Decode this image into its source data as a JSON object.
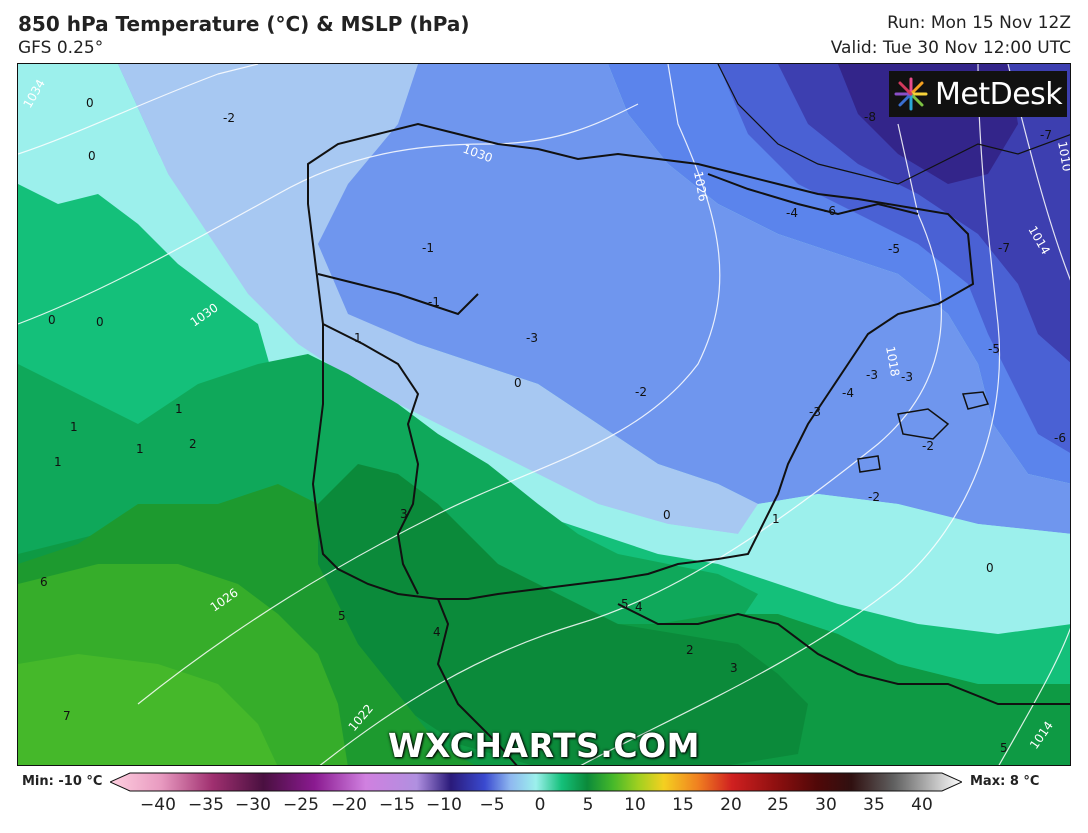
{
  "header": {
    "title": "850 hPa Temperature (°C) & MSLP (hPa)",
    "model": "GFS 0.25°",
    "run": "Run: Mon 15 Nov 12Z",
    "valid": "Valid: Tue 30 Nov 12:00 UTC"
  },
  "branding": {
    "logo_text": "MetDesk",
    "watermark": "WXCHARTS.COM"
  },
  "legend": {
    "min_label": "Min: -10 °C",
    "max_label": "Max: 8 °C",
    "ticks": [
      "−40",
      "−35",
      "−30",
      "−25",
      "−20",
      "−15",
      "−10",
      "−5",
      "0",
      "5",
      "10",
      "15",
      "20",
      "25",
      "30",
      "35",
      "40"
    ]
  },
  "map_labels": {
    "isobars": [
      "1034",
      "1030",
      "1030",
      "1026",
      "1026",
      "1022",
      "1018",
      "1014",
      "1014",
      "1010"
    ],
    "temperature": [
      "0",
      "0",
      "-2",
      "0",
      "0",
      "0",
      "1",
      "1",
      "1",
      "1",
      "2",
      "1",
      "1",
      "1",
      "-1",
      "-1",
      "-3",
      "0",
      "-2",
      "-3",
      "-4",
      "-3",
      "-3",
      "-5",
      "-5",
      "-6",
      "-7",
      "-7",
      "-8",
      "-5",
      "-4",
      "-6",
      "-2",
      "-2",
      "1",
      "0",
      "0",
      "3",
      "6",
      "5",
      "5",
      "4",
      "4",
      "2",
      "3",
      "7",
      "5",
      "5",
      "6",
      "-6"
    ]
  },
  "colors": {
    "cold_deep": "#3a2e8f",
    "cold_mid": "#4d7be8",
    "cool": "#8fb8f0",
    "cyan": "#9cf0ec",
    "warm_light": "#13c07a",
    "warm_mid": "#0f9c45",
    "warm_dark": "#087a30",
    "green_bright": "#43b52a"
  }
}
